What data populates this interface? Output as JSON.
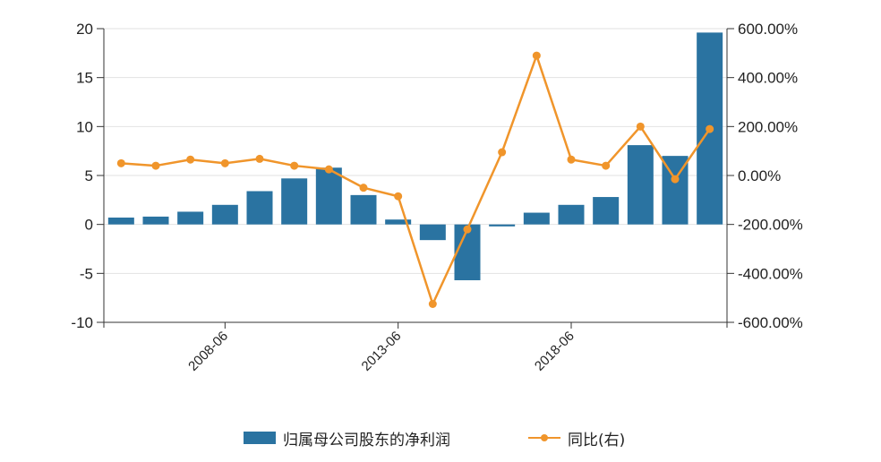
{
  "chart_data": {
    "type": "bar+line",
    "title": "",
    "x": [
      "2005-06",
      "2006-06",
      "2007-06",
      "2008-06",
      "2009-06",
      "2010-06",
      "2011-06",
      "2012-06",
      "2013-06",
      "2014-06",
      "2015-06",
      "2016-06",
      "2017-06",
      "2018-06",
      "2019-06",
      "2020-06",
      "2021-06",
      "2022-06"
    ],
    "x_ticks": [
      "2008-06",
      "2013-06",
      "2018-06"
    ],
    "series": [
      {
        "name": "归属母公司股东的净利润",
        "type": "bar",
        "axis": "left",
        "color": "#2a73a1",
        "values": [
          0.7,
          0.8,
          1.3,
          2.0,
          3.4,
          4.7,
          5.8,
          3.0,
          0.5,
          -1.6,
          -5.7,
          -0.2,
          1.2,
          2.0,
          2.8,
          8.1,
          7.0,
          19.6
        ]
      },
      {
        "name": "同比(右)",
        "type": "line",
        "axis": "right",
        "color": "#f0952b",
        "values": [
          50,
          40,
          65,
          50,
          68,
          40,
          25,
          -50,
          -85,
          -525,
          -220,
          95,
          490,
          65,
          40,
          200,
          -15,
          190
        ]
      }
    ],
    "y_left": {
      "min": -10,
      "max": 20,
      "ticks": [
        20,
        15,
        10,
        5,
        0,
        -5,
        -10
      ]
    },
    "y_right": {
      "min": -600,
      "max": 600,
      "ticks": [
        "600.00%",
        "400.00%",
        "200.00%",
        "0.00%",
        "-200.00%",
        "-400.00%",
        "-600.00%"
      ]
    },
    "grid": true,
    "legend": "bottom-center"
  },
  "legend": {
    "bar_label": "归属母公司股东的净利润",
    "line_label": "同比(右)"
  }
}
